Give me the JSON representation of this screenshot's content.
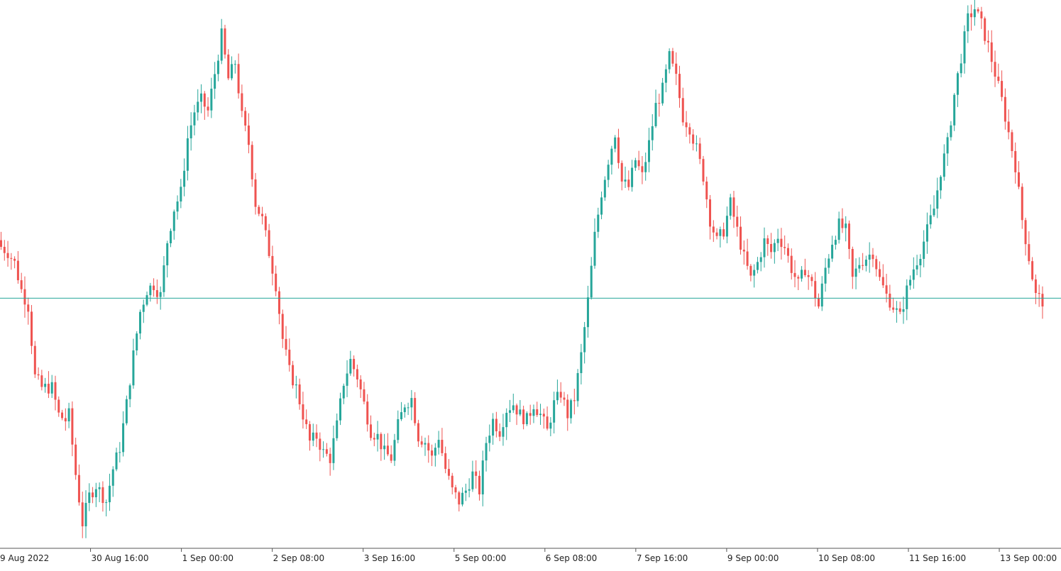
{
  "chart_data": {
    "type": "candlestick",
    "title": "",
    "xlabel": "",
    "ylabel": "",
    "grid": false,
    "ylim": [
      0,
      100
    ],
    "colors": {
      "up": "#26a69a",
      "down": "#ef5350",
      "reference_line": "#26a69a",
      "axis": "#555555"
    },
    "x_ticks": [
      "9 Aug 2022",
      "30 Aug 16:00",
      "1 Sep 00:00",
      "2 Sep 08:00",
      "3 Sep 16:00",
      "5 Sep 00:00",
      "6 Sep 08:00",
      "7 Sep 16:00",
      "9 Sep 00:00",
      "10 Sep 08:00",
      "11 Sep 16:00",
      "13 Sep 00:00"
    ],
    "reference_line": 45.5,
    "close_path": [
      [
        0,
        55
      ],
      [
        2,
        54
      ],
      [
        4,
        52
      ],
      [
        6,
        47
      ],
      [
        8,
        44
      ],
      [
        10,
        31
      ],
      [
        12,
        29
      ],
      [
        15,
        29
      ],
      [
        17,
        24
      ],
      [
        19,
        23
      ],
      [
        20,
        24
      ],
      [
        22,
        13
      ],
      [
        24,
        4
      ],
      [
        26,
        9
      ],
      [
        28,
        11
      ],
      [
        31,
        8
      ],
      [
        33,
        14
      ],
      [
        35,
        18
      ],
      [
        37,
        26
      ],
      [
        39,
        35
      ],
      [
        41,
        43
      ],
      [
        43,
        47
      ],
      [
        45,
        48
      ],
      [
        47,
        46
      ],
      [
        49,
        56
      ],
      [
        51,
        62
      ],
      [
        53,
        65
      ],
      [
        55,
        75
      ],
      [
        57,
        80
      ],
      [
        59,
        82
      ],
      [
        61,
        80
      ],
      [
        63,
        87
      ],
      [
        65,
        94
      ],
      [
        67,
        86
      ],
      [
        69,
        89
      ],
      [
        71,
        79
      ],
      [
        73,
        74
      ],
      [
        75,
        63
      ],
      [
        77,
        60
      ],
      [
        79,
        54
      ],
      [
        81,
        48
      ],
      [
        83,
        38
      ],
      [
        85,
        32
      ],
      [
        87,
        29
      ],
      [
        89,
        24
      ],
      [
        91,
        19
      ],
      [
        93,
        20
      ],
      [
        95,
        17
      ],
      [
        97,
        16
      ],
      [
        99,
        22
      ],
      [
        101,
        30
      ],
      [
        103,
        34
      ],
      [
        105,
        31
      ],
      [
        107,
        26
      ],
      [
        109,
        21
      ],
      [
        111,
        20
      ],
      [
        113,
        17
      ],
      [
        115,
        16
      ],
      [
        117,
        22
      ],
      [
        119,
        26
      ],
      [
        121,
        27
      ],
      [
        123,
        20
      ],
      [
        125,
        19
      ],
      [
        127,
        16
      ],
      [
        129,
        20
      ],
      [
        131,
        14
      ],
      [
        133,
        10
      ],
      [
        135,
        8
      ],
      [
        137,
        10
      ],
      [
        139,
        13
      ],
      [
        141,
        10
      ],
      [
        143,
        19
      ],
      [
        145,
        23
      ],
      [
        147,
        21
      ],
      [
        149,
        25
      ],
      [
        151,
        26
      ],
      [
        153,
        24
      ],
      [
        155,
        23
      ],
      [
        157,
        26
      ],
      [
        159,
        24
      ],
      [
        161,
        21
      ],
      [
        163,
        26
      ],
      [
        165,
        28
      ],
      [
        167,
        24
      ],
      [
        169,
        27
      ],
      [
        171,
        35
      ],
      [
        173,
        45
      ],
      [
        175,
        57
      ],
      [
        177,
        65
      ],
      [
        179,
        71
      ],
      [
        181,
        76
      ],
      [
        183,
        67
      ],
      [
        185,
        66
      ],
      [
        187,
        71
      ],
      [
        189,
        68
      ],
      [
        191,
        74
      ],
      [
        193,
        81
      ],
      [
        195,
        84
      ],
      [
        197,
        90
      ],
      [
        199,
        86
      ],
      [
        201,
        79
      ],
      [
        203,
        77
      ],
      [
        205,
        73
      ],
      [
        207,
        68
      ],
      [
        209,
        60
      ],
      [
        211,
        56
      ],
      [
        213,
        58
      ],
      [
        215,
        63
      ],
      [
        217,
        58
      ],
      [
        219,
        53
      ],
      [
        221,
        49
      ],
      [
        223,
        52
      ],
      [
        225,
        56
      ],
      [
        227,
        54
      ],
      [
        229,
        57
      ],
      [
        231,
        55
      ],
      [
        233,
        51
      ],
      [
        235,
        48
      ],
      [
        237,
        51
      ],
      [
        239,
        48
      ],
      [
        241,
        44
      ],
      [
        243,
        51
      ],
      [
        245,
        56
      ],
      [
        247,
        59
      ],
      [
        249,
        58
      ],
      [
        251,
        49
      ],
      [
        253,
        52
      ],
      [
        255,
        53
      ],
      [
        257,
        54
      ],
      [
        259,
        49
      ],
      [
        261,
        46
      ],
      [
        263,
        44
      ],
      [
        265,
        42
      ],
      [
        267,
        47
      ],
      [
        269,
        51
      ],
      [
        271,
        54
      ],
      [
        273,
        58
      ],
      [
        275,
        62
      ],
      [
        277,
        69
      ],
      [
        279,
        74
      ],
      [
        281,
        83
      ],
      [
        283,
        90
      ],
      [
        285,
        97
      ],
      [
        287,
        99
      ],
      [
        289,
        96
      ],
      [
        291,
        92
      ],
      [
        293,
        87
      ],
      [
        295,
        82
      ],
      [
        297,
        76
      ],
      [
        299,
        70
      ],
      [
        301,
        60
      ],
      [
        303,
        53
      ],
      [
        305,
        46
      ],
      [
        307,
        45
      ]
    ]
  }
}
